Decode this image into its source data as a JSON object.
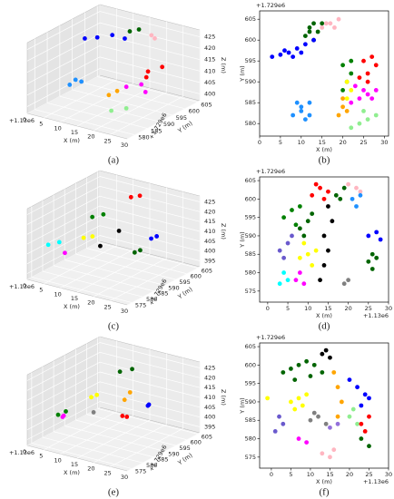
{
  "chart_data": [
    {
      "type": "scatter3d",
      "caption": "(a)",
      "xlabel": "X (m)",
      "ylabel": "Y (m)",
      "zlabel": "Z (m)",
      "x_offset_label": "+1.13e6",
      "y_offset_label": "+1.729e6",
      "xlim": [
        0,
        30
      ],
      "ylim": [
        577,
        606
      ],
      "zlim": [
        397,
        428
      ],
      "xticks": [
        0,
        5,
        10,
        15,
        20,
        25,
        30
      ],
      "yticks": [
        580,
        585,
        590,
        595,
        600,
        605
      ],
      "zticks": [
        400,
        405,
        410,
        415,
        420,
        425
      ],
      "series": [
        {
          "color": "#0000ff",
          "x": [
            3,
            6,
            9,
            12
          ],
          "y": [
            596,
            597,
            599,
            600
          ],
          "z": [
            420,
            421,
            422,
            421
          ]
        },
        {
          "color": "#006400",
          "x": [
            12,
            14
          ],
          "y": [
            602,
            603
          ],
          "z": [
            423,
            424
          ]
        },
        {
          "color": "#ffb6c1",
          "x": [
            17,
            18
          ],
          "y": [
            604,
            604
          ],
          "z": [
            422,
            421
          ]
        },
        {
          "color": "#1e90ff",
          "x": [
            9,
            11,
            10
          ],
          "y": [
            582,
            584,
            583
          ],
          "z": [
            410,
            411,
            412
          ]
        },
        {
          "color": "#ff0000",
          "x": [
            25,
            27,
            26
          ],
          "y": [
            592,
            595,
            590
          ],
          "z": [
            416,
            417,
            415
          ]
        },
        {
          "color": "#ff00ff",
          "x": [
            23,
            26,
            28
          ],
          "y": [
            586,
            588,
            587
          ],
          "z": [
            412,
            413,
            411
          ]
        },
        {
          "color": "#ffa500",
          "x": [
            20,
            21
          ],
          "y": [
            583,
            585
          ],
          "z": [
            409,
            410
          ]
        },
        {
          "color": "#90ee90",
          "x": [
            23,
            26
          ],
          "y": [
            580,
            582
          ],
          "z": [
            405,
            406
          ]
        }
      ]
    },
    {
      "type": "scatter",
      "caption": "(b)",
      "xlabel": "X (m)",
      "ylabel": "Y (m)",
      "y_offset_label": "+1.729e6",
      "xlim": [
        0,
        31
      ],
      "ylim": [
        577,
        607
      ],
      "xticks": [
        0,
        5,
        10,
        15,
        20,
        25,
        30
      ],
      "yticks": [
        580,
        585,
        590,
        595,
        600,
        605
      ],
      "series": [
        {
          "color": "#006400",
          "x": [
            11,
            12,
            13,
            14,
            15,
            13,
            12
          ],
          "y": [
            601,
            603,
            604,
            602,
            604,
            600,
            602
          ]
        },
        {
          "color": "#ffb6c1",
          "x": [
            15,
            17,
            19,
            18,
            16
          ],
          "y": [
            603,
            604,
            605,
            603,
            604
          ]
        },
        {
          "color": "#0000ff",
          "x": [
            3,
            5,
            7,
            9,
            11,
            13,
            8,
            10,
            6
          ],
          "y": [
            596,
            596.5,
            597,
            598,
            599,
            600,
            596,
            597,
            597.5
          ]
        },
        {
          "color": "#1e90ff",
          "x": [
            8,
            10,
            12,
            9,
            11,
            10,
            12
          ],
          "y": [
            582,
            583,
            585,
            585,
            581,
            584,
            582
          ]
        },
        {
          "color": "#ff0000",
          "x": [
            24,
            26,
            28,
            25,
            27,
            26
          ],
          "y": [
            591,
            592,
            594,
            595,
            596,
            590
          ]
        },
        {
          "color": "#ff00ff",
          "x": [
            22,
            24,
            26,
            28,
            23,
            25,
            27
          ],
          "y": [
            585,
            586,
            587,
            588,
            589,
            588,
            586
          ]
        },
        {
          "color": "#ffa500",
          "x": [
            19,
            20,
            21,
            20
          ],
          "y": [
            582,
            584,
            583,
            586
          ]
        },
        {
          "color": "#90ee90",
          "x": [
            22,
            24,
            26,
            28,
            25
          ],
          "y": [
            579,
            580,
            581,
            582,
            583
          ]
        },
        {
          "color": "#008000",
          "x": [
            20,
            21,
            22,
            20,
            22
          ],
          "y": [
            588,
            590,
            592,
            594,
            595
          ]
        },
        {
          "color": "#ffff00",
          "x": [
            21,
            22,
            21
          ],
          "y": [
            586,
            588,
            590
          ]
        }
      ]
    },
    {
      "type": "scatter3d",
      "caption": "(c)",
      "xlabel": "X (m)",
      "ylabel": "Y (m)",
      "zlabel": "Z (m)",
      "x_offset_label": "+1.13e6",
      "y_offset_label": "+1.729e6",
      "xlim": [
        0,
        30
      ],
      "ylim": [
        573,
        606
      ],
      "zlim": [
        392,
        428
      ],
      "xticks": [
        0,
        5,
        10,
        15,
        20,
        25,
        30
      ],
      "yticks": [
        575,
        580,
        585,
        590,
        595,
        600,
        605
      ],
      "zticks": [
        395,
        400,
        405,
        410,
        415,
        420,
        425
      ],
      "series": [
        {
          "color": "#ff0000",
          "x": [
            12,
            14
          ],
          "y": [
            602,
            603
          ],
          "z": [
            422,
            423
          ]
        },
        {
          "color": "#008000",
          "x": [
            5,
            7
          ],
          "y": [
            595,
            597
          ],
          "z": [
            413,
            414
          ]
        },
        {
          "color": "#ffff00",
          "x": [
            9,
            11
          ],
          "y": [
            585,
            586
          ],
          "z": [
            410,
            411
          ]
        },
        {
          "color": "#000000",
          "x": [
            14,
            15
          ],
          "y": [
            585,
            592
          ],
          "z": [
            408,
            412
          ]
        },
        {
          "color": "#00ffff",
          "x": [
            3,
            5
          ],
          "y": [
            578,
            580
          ],
          "z": [
            408,
            409
          ]
        },
        {
          "color": "#0000ff",
          "x": [
            26,
            27
          ],
          "y": [
            590,
            591
          ],
          "z": [
            414,
            415
          ]
        },
        {
          "color": "#ff00ff",
          "x": [
            8
          ],
          "y": [
            578
          ],
          "z": [
            406
          ]
        },
        {
          "color": "#006400",
          "x": [
            25,
            26
          ],
          "y": [
            584,
            585
          ],
          "z": [
            410,
            411
          ]
        }
      ]
    },
    {
      "type": "scatter",
      "caption": "(d)",
      "xlabel": "X (m)",
      "ylabel": "Y (m)",
      "x_offset_label": "+1.13e6",
      "y_offset_label": "+1.729e6",
      "xlim": [
        -2,
        30
      ],
      "ylim": [
        572,
        606
      ],
      "xticks": [
        0,
        5,
        10,
        15,
        20,
        25,
        30
      ],
      "yticks": [
        575,
        580,
        585,
        590,
        595,
        600,
        605
      ],
      "series": [
        {
          "color": "#ff0000",
          "x": [
            11,
            13,
            15,
            12,
            14
          ],
          "y": [
            601,
            603,
            602,
            604,
            600
          ]
        },
        {
          "color": "#006400",
          "x": [
            17,
            19,
            18
          ],
          "y": [
            601,
            603,
            600
          ]
        },
        {
          "color": "#ffb6c1",
          "x": [
            20,
            22,
            23
          ],
          "y": [
            604,
            603,
            602
          ]
        },
        {
          "color": "#1e90ff",
          "x": [
            21,
            23,
            22
          ],
          "y": [
            600,
            601,
            598
          ]
        },
        {
          "color": "#008000",
          "x": [
            4,
            6,
            8,
            7
          ],
          "y": [
            595,
            597,
            598,
            593
          ]
        },
        {
          "color": "#006400",
          "x": [
            8,
            10,
            9,
            11
          ],
          "y": [
            592,
            594,
            590,
            596
          ]
        },
        {
          "color": "#ffff00",
          "x": [
            8,
            10,
            12,
            9,
            11
          ],
          "y": [
            584,
            585,
            586,
            588,
            582
          ]
        },
        {
          "color": "#000000",
          "x": [
            13,
            14,
            15,
            14,
            16,
            15
          ],
          "y": [
            578,
            582,
            586,
            590,
            594,
            598
          ]
        },
        {
          "color": "#0000ff",
          "x": [
            25,
            27,
            28
          ],
          "y": [
            590,
            591,
            589
          ]
        },
        {
          "color": "#006400",
          "x": [
            25,
            26,
            27,
            26
          ],
          "y": [
            583,
            585,
            584,
            581
          ]
        },
        {
          "color": "#6a5acd",
          "x": [
            3,
            5,
            4,
            6
          ],
          "y": [
            586,
            588,
            584,
            590
          ]
        },
        {
          "color": "#00ffff",
          "x": [
            3,
            5,
            4
          ],
          "y": [
            577,
            578,
            580
          ]
        },
        {
          "color": "#ff00ff",
          "x": [
            7,
            9,
            8
          ],
          "y": [
            578,
            577,
            580
          ]
        },
        {
          "color": "#808080",
          "x": [
            19,
            20
          ],
          "y": [
            577,
            578
          ]
        }
      ]
    },
    {
      "type": "scatter3d",
      "caption": "(e)",
      "xlabel": "X (m)",
      "ylabel": "Y (m)",
      "zlabel": "Z (m)",
      "x_offset_label": "+1.13e6",
      "y_offset_label": "+1.729e6",
      "xlim": [
        0,
        30
      ],
      "ylim": [
        573,
        606
      ],
      "zlim": [
        392,
        428
      ],
      "xticks": [
        0,
        5,
        10,
        15,
        20,
        25,
        30
      ],
      "yticks": [
        575,
        580,
        585,
        590,
        595,
        600,
        605
      ],
      "zticks": [
        395,
        400,
        405,
        410,
        415,
        420,
        425
      ],
      "series": [
        {
          "color": "#006400",
          "x": [
            10,
            13
          ],
          "y": [
            600,
            601
          ],
          "z": [
            418,
            420
          ]
        },
        {
          "color": "#ffff00",
          "x": [
            8,
            9
          ],
          "y": [
            590,
            591
          ],
          "z": [
            410,
            411
          ]
        },
        {
          "color": "#ff0000",
          "x": [
            20,
            22
          ],
          "y": [
            586,
            585
          ],
          "z": [
            408,
            409
          ]
        },
        {
          "color": "#0000ff",
          "x": [
            24,
            25
          ],
          "y": [
            592,
            590
          ],
          "z": [
            412,
            413
          ]
        },
        {
          "color": "#ffa500",
          "x": [
            17,
            18
          ],
          "y": [
            594,
            590
          ],
          "z": [
            414,
            413
          ]
        },
        {
          "color": "#ff00ff",
          "x": [
            5,
            6
          ],
          "y": [
            582,
            580
          ],
          "z": [
            404,
            405
          ]
        },
        {
          "color": "#808080",
          "x": [
            12
          ],
          "y": [
            585
          ],
          "z": [
            407
          ]
        },
        {
          "color": "#008000",
          "x": [
            2,
            3
          ],
          "y": [
            584,
            586
          ],
          "z": [
            402,
            403
          ]
        }
      ]
    },
    {
      "type": "scatter",
      "caption": "(f)",
      "xlabel": "X (m)",
      "ylabel": "Y (m)",
      "x_offset_label": "+1.13e6",
      "y_offset_label": "+1.729e6",
      "xlim": [
        -3,
        30
      ],
      "ylim": [
        572,
        606
      ],
      "xticks": [
        0,
        5,
        10,
        15,
        20,
        25,
        30
      ],
      "yticks": [
        575,
        580,
        585,
        590,
        595,
        600,
        605
      ],
      "series": [
        {
          "color": "#006400",
          "x": [
            3,
            5,
            7,
            9,
            11,
            13,
            6,
            10
          ],
          "y": [
            598,
            599,
            600,
            601,
            600,
            598,
            596,
            597
          ]
        },
        {
          "color": "#000000",
          "x": [
            13,
            14,
            15
          ],
          "y": [
            603,
            604,
            602
          ]
        },
        {
          "color": "#ffa500",
          "x": [
            16,
            17,
            18,
            17
          ],
          "y": [
            598,
            594,
            590,
            586
          ]
        },
        {
          "color": "#0000ff",
          "x": [
            20,
            22,
            24,
            23,
            25
          ],
          "y": [
            596,
            594,
            592,
            589,
            591
          ]
        },
        {
          "color": "#ffff00",
          "x": [
            5,
            7,
            9,
            8,
            6,
            -1
          ],
          "y": [
            590,
            591,
            592,
            589,
            588,
            591
          ]
        },
        {
          "color": "#90ee90",
          "x": [
            20,
            21,
            22
          ],
          "y": [
            586,
            588,
            584
          ]
        },
        {
          "color": "#ff0000",
          "x": [
            23,
            25,
            24
          ],
          "y": [
            584,
            586,
            582
          ]
        },
        {
          "color": "#006400",
          "x": [
            23,
            25
          ],
          "y": [
            580,
            578
          ]
        },
        {
          "color": "#808080",
          "x": [
            10,
            12,
            14,
            11
          ],
          "y": [
            585,
            586,
            584,
            587
          ]
        },
        {
          "color": "#6a5acd",
          "x": [
            1,
            3,
            2
          ],
          "y": [
            582,
            584,
            586
          ]
        },
        {
          "color": "#ff00ff",
          "x": [
            7,
            9
          ],
          "y": [
            580,
            579
          ]
        },
        {
          "color": "#ffb6c1",
          "x": [
            13,
            15,
            16
          ],
          "y": [
            576,
            575,
            577
          ]
        },
        {
          "color": "#9370db",
          "x": [
            15,
            17
          ],
          "y": [
            583,
            584
          ]
        }
      ]
    }
  ]
}
